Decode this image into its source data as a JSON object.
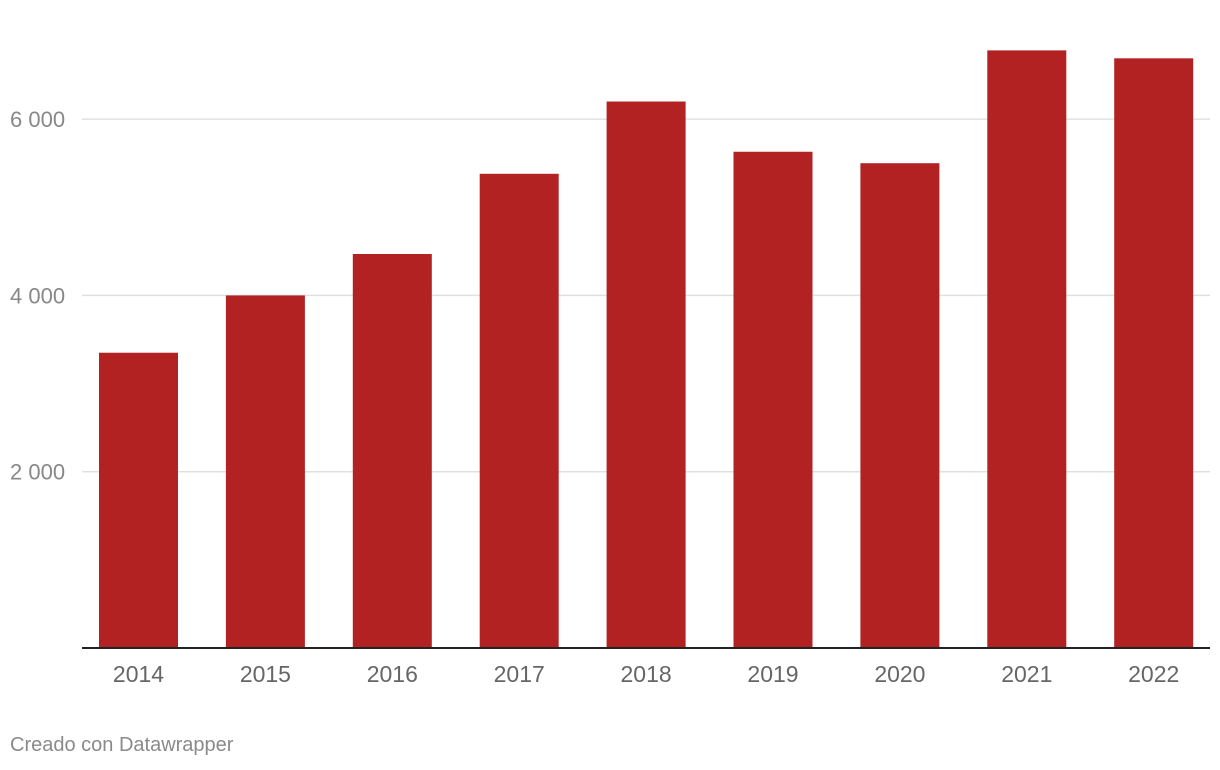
{
  "chart_data": {
    "type": "bar",
    "categories": [
      "2014",
      "2015",
      "2016",
      "2017",
      "2018",
      "2019",
      "2020",
      "2021",
      "2022"
    ],
    "values": [
      3350,
      4000,
      4470,
      5380,
      6200,
      5630,
      5500,
      6780,
      6690
    ],
    "ylim": [
      0,
      7000
    ],
    "yticks": [
      2000,
      4000,
      6000
    ],
    "ytick_labels": [
      "2 000",
      "4 000",
      "6 000"
    ],
    "grid": true,
    "title": "",
    "xlabel": "",
    "ylabel": "",
    "colors": {
      "bar": "#b22222",
      "grid": "#e0e0e0",
      "baseline": "#222222"
    }
  },
  "footer": {
    "credit": "Creado con Datawrapper"
  }
}
